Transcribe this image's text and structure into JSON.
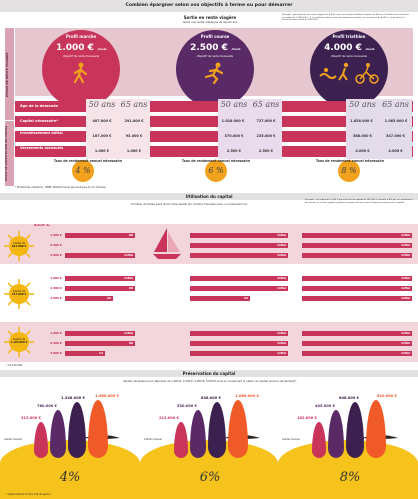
{
  "header": {
    "title": "Combien épargner selon vos objectifs à terme ou pour démarrer"
  },
  "section1": {
    "subtitle": "Sortie en rente viagère",
    "subtitle2": "Après une durée d'épargne de quinze ans",
    "note": "Exemple : pour obtenir une rente viagère de 4.000 € par mois (profil triathlon) à partir de 65 ans, il faudra avoir constitué un capital de 1.063.000 €. Il en coûtera, selon le taux de rendement annuel, un versement de 4.000 €, et au total, un investissement initial de 347.000 €.",
    "phase_rente": "PHASE DE RENTE VIAGÈRE",
    "phase_constitution": "PHASE DE CONSTITUTION DU CAPITAL",
    "row_labels": [
      "Âge de la demande",
      "Capital nécessaire*",
      "Investissement initial",
      "Versements mensuels"
    ],
    "taux_label": "Taux de rendement annuel nécessaire",
    "footnote": "* Montant des cotisations : INSEE, Perfectionné au taux technique de 1%, Données",
    "profiles": [
      {
        "name": "Profil marche",
        "amount": "1.000 €",
        "unit": "/mois",
        "desc": "Objectif de rente mensuelle",
        "color": "#c8345a",
        "ages": [
          "50 ans",
          "65 ans"
        ],
        "capital": [
          "407.000 €",
          "291.000 €"
        ],
        "invest": [
          "187.000 €",
          "93.000 €"
        ],
        "versements": [
          "1.000 €",
          "1.000 €"
        ],
        "taux": "4 %"
      },
      {
        "name": "Profil course",
        "amount": "2.500 €",
        "unit": "/mois",
        "desc": "Objectif de rente mensuelle",
        "color": "#5a2a66",
        "ages": [
          "50 ans",
          "65 ans"
        ],
        "capital": [
          "1.016.000 €",
          "727.000 €"
        ],
        "invest": [
          "370.000 €",
          "235.000 €"
        ],
        "versements": [
          "2.500 €",
          "2.500 €"
        ],
        "taux": "6 %"
      },
      {
        "name": "Profil triathlon",
        "amount": "4.000 €",
        "unit": "/mois",
        "desc": "Objectif de rente mensuelle",
        "color": "#3b2050",
        "ages": [
          "50 ans",
          "65 ans"
        ],
        "capital": [
          "1.626.000 €",
          "1.063.000 €"
        ],
        "invest": [
          "588.000 €",
          "347.000 €"
        ],
        "versements": [
          "4.000 €",
          "4.000 €"
        ],
        "taux": "8 %"
      }
    ]
  },
  "section2": {
    "title": "Utilisation du capital",
    "subtitle": "Combien de temps peut durer votre capital (en nombre d'années) avec un rendement de...",
    "note": "Exemple : un capital de 1.000 € par mois sur un capital de 291.000 €, retraité à 4% par an, permettent de toucher ce revenu régulier pendant soixante-huit ans avant d'épuiser entièrement le capital.",
    "retrait_label": "Retrait* de",
    "capital_label": "Capital de",
    "blocks": [
      {
        "capital": "291.000 €",
        "retraits": [
          "1.000 €",
          "2.500 €",
          "4.000 €"
        ],
        "cols": [
          [
            "68",
            "",
            "Infini"
          ],
          [
            "Infini",
            "Infini",
            "Infini"
          ],
          [
            "Infini",
            "Infini",
            "Infini"
          ]
        ]
      },
      {
        "capital": "727.000 €",
        "retraits": [
          "1.000 €",
          "2.500 €",
          "4.000 €"
        ],
        "cols": [
          [
            "Infini",
            "68",
            "22"
          ],
          [
            "Infini",
            "Infini",
            "33"
          ],
          [
            "Infini",
            "Infini",
            "Infini"
          ]
        ]
      },
      {
        "capital": "1.163.000 €",
        "retraits": [
          "1.000 €",
          "2.500 €",
          "4.000 €"
        ],
        "cols": [
          [
            "Infini",
            "68",
            "14"
          ],
          [
            "Infini",
            "Infini",
            "Infini"
          ],
          [
            "Infini",
            "Infini",
            "Infini"
          ]
        ]
      }
    ],
    "footnote": "* mois fiscalité"
  },
  "section3": {
    "title": "Préservation du capital",
    "subtitle": "Capital nécessaire pour dépenser de 1.000 €, 2.500 €, 4.000 €, 5.000 € mois en conservant la valeur du capital (sans le rendement)*.",
    "groups": [
      {
        "pct": "4%",
        "values": [
          "312.000 €",
          "780.000 €",
          "1.248.000 €",
          "1.560.000 €"
        ],
        "monthly": "Capital mensuel"
      },
      {
        "pct": "6%",
        "values": [
          "212.000 €",
          "530.000 €",
          "848.000 €",
          "1.060.000 €"
        ],
        "monthly": "Capital mensuel"
      },
      {
        "pct": "8%",
        "values": [
          "162.000 €",
          "405.000 €",
          "648.000 €",
          "810.000 €"
        ],
        "monthly": "Capital mensuel"
      }
    ],
    "footnote": "* Capital restant dû Hors frais de gestion"
  },
  "colors": {
    "pink": "#c8345a",
    "purple": "#5a2a66",
    "darkpurple": "#3b2050",
    "lightpink": "#f3dbe1",
    "orange": "#f2a21d",
    "yellow": "#f6c21c",
    "sun": "#f4b70f"
  }
}
